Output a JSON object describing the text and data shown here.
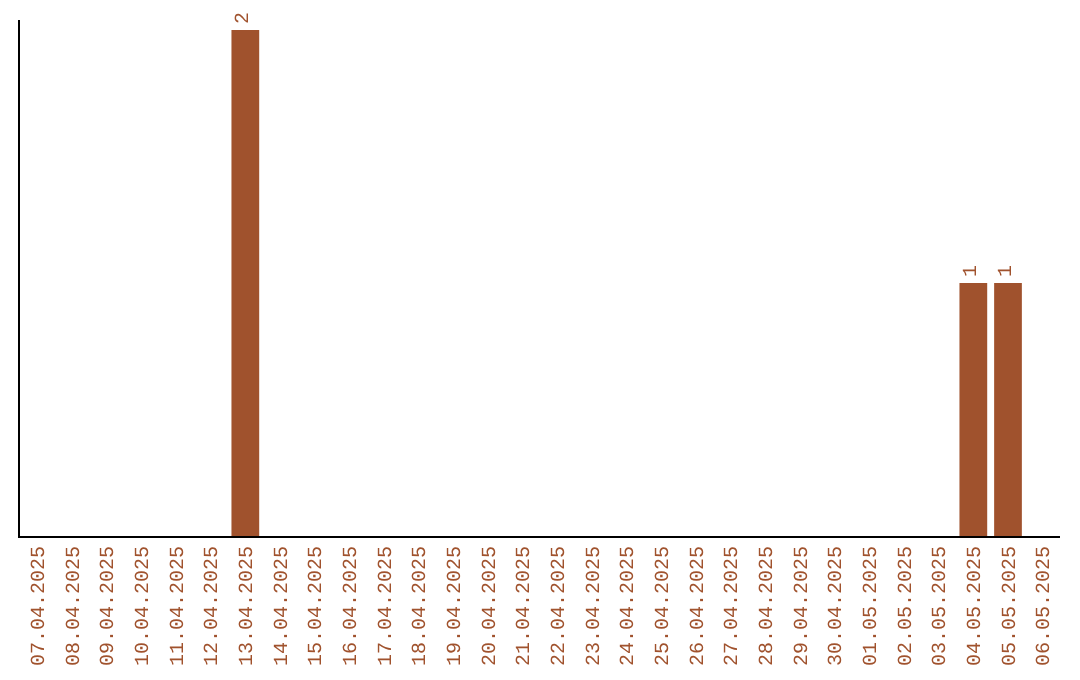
{
  "chart_data": {
    "type": "bar",
    "categories": [
      "07.04.2025",
      "08.04.2025",
      "09.04.2025",
      "10.04.2025",
      "11.04.2025",
      "12.04.2025",
      "13.04.2025",
      "14.04.2025",
      "15.04.2025",
      "16.04.2025",
      "17.04.2025",
      "18.04.2025",
      "19.04.2025",
      "20.04.2025",
      "21.04.2025",
      "22.04.2025",
      "23.04.2025",
      "24.04.2025",
      "25.04.2025",
      "26.04.2025",
      "27.04.2025",
      "28.04.2025",
      "29.04.2025",
      "30.04.2025",
      "01.05.2025",
      "02.05.2025",
      "03.05.2025",
      "04.05.2025",
      "05.05.2025",
      "06.05.2025"
    ],
    "values": [
      0,
      0,
      0,
      0,
      0,
      0,
      2,
      0,
      0,
      0,
      0,
      0,
      0,
      0,
      0,
      0,
      0,
      0,
      0,
      0,
      0,
      0,
      0,
      0,
      0,
      0,
      0,
      1,
      1,
      0
    ],
    "value_labels": [
      null,
      null,
      null,
      null,
      null,
      null,
      "2",
      null,
      null,
      null,
      null,
      null,
      null,
      null,
      null,
      null,
      null,
      null,
      null,
      null,
      null,
      null,
      null,
      null,
      null,
      null,
      null,
      "1",
      "1",
      null
    ],
    "color": "#a0522d",
    "ylim": [
      0,
      2.04
    ],
    "tick_labels": "x",
    "grid": false,
    "legend": false
  }
}
